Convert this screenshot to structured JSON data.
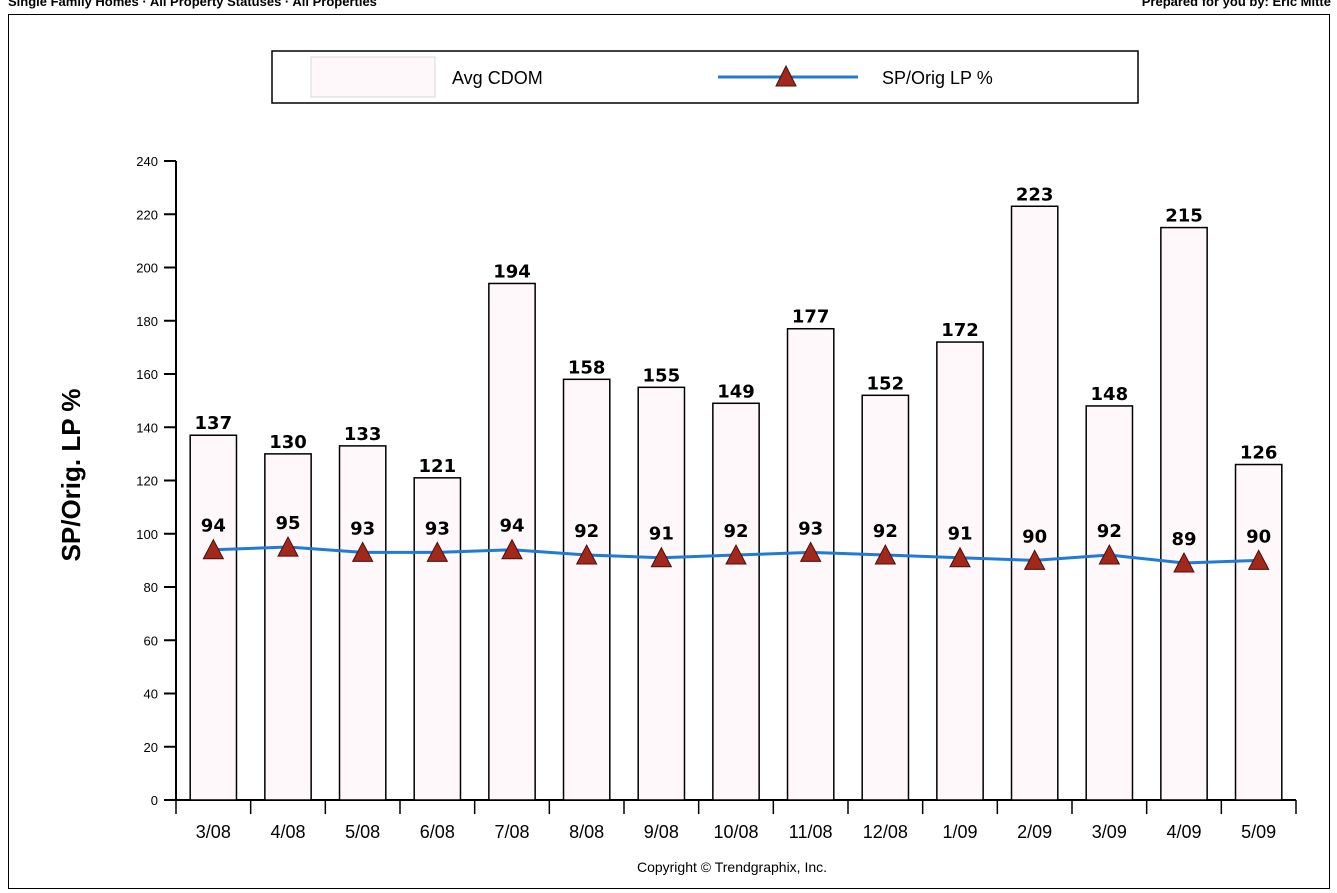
{
  "header": {
    "left": "Single Family Homes · All Property Statuses · All Properties",
    "right": "Prepared for you by: Eric Mitte"
  },
  "copyright": "Copyright © Trendgraphix, Inc.",
  "chart_data": {
    "type": "bar",
    "categories": [
      "3/08",
      "4/08",
      "5/08",
      "6/08",
      "7/08",
      "8/08",
      "9/08",
      "10/08",
      "11/08",
      "12/08",
      "1/09",
      "2/09",
      "3/09",
      "4/09",
      "5/09"
    ],
    "series": [
      {
        "name": "Avg CDOM",
        "type": "bar",
        "values": [
          137,
          130,
          133,
          121,
          194,
          158,
          155,
          149,
          177,
          152,
          172,
          223,
          148,
          215,
          126
        ]
      },
      {
        "name": "SP/Orig LP %",
        "type": "line",
        "values": [
          94,
          95,
          93,
          93,
          94,
          92,
          91,
          92,
          93,
          92,
          91,
          90,
          92,
          89,
          90
        ]
      }
    ],
    "ylabel": "SP/Orig. LP %",
    "ylim": [
      0,
      240
    ],
    "yticks": [
      0,
      20,
      40,
      60,
      80,
      100,
      120,
      140,
      160,
      180,
      200,
      220,
      240
    ],
    "legend": "top",
    "grid": false,
    "colors": {
      "bar_fill": "#fff8fb",
      "line": "#1f7bd6",
      "marker": "#a1281a"
    }
  }
}
